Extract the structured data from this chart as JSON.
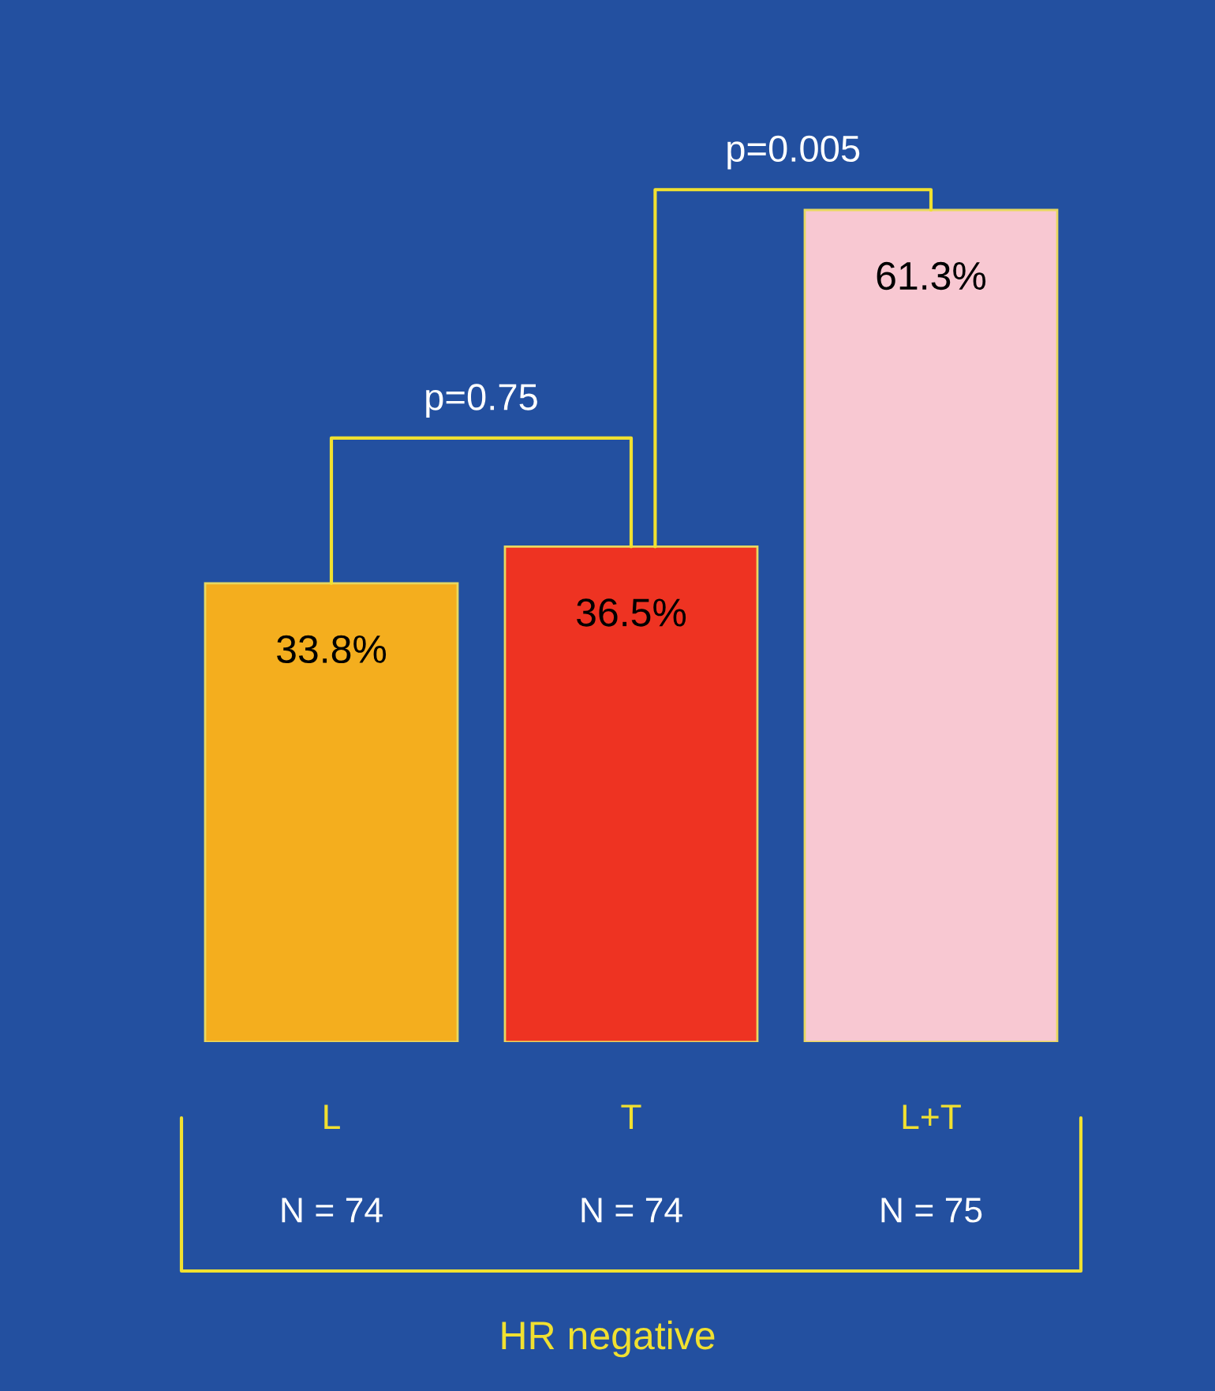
{
  "chart_data": {
    "type": "bar",
    "categories": [
      "L",
      "T",
      "L+T"
    ],
    "values": [
      33.8,
      36.5,
      61.3
    ],
    "colors": [
      "#f4ae1e",
      "#ee3322",
      "#f8c8d2"
    ],
    "value_labels": [
      "33.8%",
      "36.5%",
      "61.3%"
    ],
    "xlabel": "HR negative",
    "annotations": [
      "N = 74",
      "N = 74",
      "N = 75",
      "p=0.75",
      "p=0.005"
    ]
  }
}
